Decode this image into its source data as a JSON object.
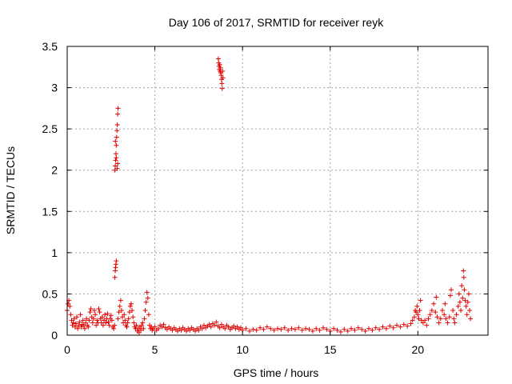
{
  "chart_data": {
    "type": "scatter",
    "title": "Day 106 of 2017, SRMTID for receiver reyk",
    "xlabel": "GPS time / hours",
    "ylabel": "SRMTID / TECUs",
    "xlim": [
      0,
      24
    ],
    "ylim": [
      0,
      3.5
    ],
    "grid": true,
    "marker": "+",
    "color": "#e00000",
    "x_ticks": [
      {
        "value": 0,
        "label": "0"
      },
      {
        "value": 5,
        "label": "5"
      },
      {
        "value": 10,
        "label": "10"
      },
      {
        "value": 15,
        "label": "15"
      },
      {
        "value": 20,
        "label": "20"
      }
    ],
    "y_ticks": [
      {
        "value": 0,
        "label": "0"
      },
      {
        "value": 0.5,
        "label": "0.5"
      },
      {
        "value": 1,
        "label": "1"
      },
      {
        "value": 1.5,
        "label": "1.5"
      },
      {
        "value": 2,
        "label": "2"
      },
      {
        "value": 2.5,
        "label": "2.5"
      },
      {
        "value": 3,
        "label": "3"
      },
      {
        "value": 3.5,
        "label": "3.5"
      }
    ],
    "series": [
      {
        "name": "reyk",
        "points": [
          [
            0.0,
            0.3
          ],
          [
            0.05,
            0.38
          ],
          [
            0.1,
            0.42
          ],
          [
            0.15,
            0.35
          ],
          [
            0.2,
            0.25
          ],
          [
            0.25,
            0.18
          ],
          [
            0.3,
            0.12
          ],
          [
            0.35,
            0.15
          ],
          [
            0.4,
            0.2
          ],
          [
            0.45,
            0.1
          ],
          [
            0.5,
            0.14
          ],
          [
            0.55,
            0.22
          ],
          [
            0.6,
            0.08
          ],
          [
            0.65,
            0.12
          ],
          [
            0.7,
            0.16
          ],
          [
            0.75,
            0.25
          ],
          [
            0.8,
            0.1
          ],
          [
            0.85,
            0.13
          ],
          [
            0.9,
            0.18
          ],
          [
            0.95,
            0.12
          ],
          [
            1.0,
            0.08
          ],
          [
            1.05,
            0.15
          ],
          [
            1.1,
            0.2
          ],
          [
            1.15,
            0.12
          ],
          [
            1.2,
            0.1
          ],
          [
            1.25,
            0.18
          ],
          [
            1.3,
            0.28
          ],
          [
            1.35,
            0.32
          ],
          [
            1.4,
            0.22
          ],
          [
            1.45,
            0.15
          ],
          [
            1.5,
            0.2
          ],
          [
            1.55,
            0.3
          ],
          [
            1.6,
            0.25
          ],
          [
            1.65,
            0.12
          ],
          [
            1.7,
            0.18
          ],
          [
            1.75,
            0.15
          ],
          [
            1.8,
            0.32
          ],
          [
            1.85,
            0.28
          ],
          [
            1.9,
            0.2
          ],
          [
            1.95,
            0.15
          ],
          [
            2.0,
            0.22
          ],
          [
            2.05,
            0.12
          ],
          [
            2.1,
            0.18
          ],
          [
            2.15,
            0.25
          ],
          [
            2.2,
            0.15
          ],
          [
            2.25,
            0.2
          ],
          [
            2.3,
            0.26
          ],
          [
            2.35,
            0.16
          ],
          [
            2.4,
            0.12
          ],
          [
            2.45,
            0.2
          ],
          [
            2.5,
            0.24
          ],
          [
            2.55,
            0.18
          ],
          [
            2.6,
            0.1
          ],
          [
            2.65,
            0.08
          ],
          [
            2.7,
            0.12
          ],
          [
            2.72,
            0.7
          ],
          [
            2.74,
            0.78
          ],
          [
            2.76,
            0.82
          ],
          [
            2.78,
            0.86
          ],
          [
            2.8,
            0.9
          ],
          [
            2.72,
            2.0
          ],
          [
            2.74,
            2.05
          ],
          [
            2.76,
            2.12
          ],
          [
            2.78,
            2.2
          ],
          [
            2.8,
            2.3
          ],
          [
            2.82,
            2.4
          ],
          [
            2.84,
            2.48
          ],
          [
            2.86,
            2.55
          ],
          [
            2.88,
            2.68
          ],
          [
            2.9,
            2.75
          ],
          [
            2.75,
            2.35
          ],
          [
            2.8,
            2.15
          ],
          [
            2.85,
            2.02
          ],
          [
            2.88,
            2.08
          ],
          [
            2.9,
            0.2
          ],
          [
            2.95,
            0.28
          ],
          [
            3.0,
            0.35
          ],
          [
            3.05,
            0.42
          ],
          [
            3.1,
            0.3
          ],
          [
            3.15,
            0.22
          ],
          [
            3.2,
            0.15
          ],
          [
            3.25,
            0.25
          ],
          [
            3.3,
            0.18
          ],
          [
            3.35,
            0.12
          ],
          [
            3.4,
            0.1
          ],
          [
            3.45,
            0.15
          ],
          [
            3.5,
            0.2
          ],
          [
            3.55,
            0.28
          ],
          [
            3.6,
            0.35
          ],
          [
            3.65,
            0.38
          ],
          [
            3.7,
            0.3
          ],
          [
            3.75,
            0.22
          ],
          [
            3.8,
            0.15
          ],
          [
            3.85,
            0.1
          ],
          [
            3.9,
            0.08
          ],
          [
            3.95,
            0.12
          ],
          [
            4.0,
            0.05
          ],
          [
            4.05,
            0.08
          ],
          [
            4.1,
            0.03
          ],
          [
            4.15,
            0.1
          ],
          [
            4.2,
            0.06
          ],
          [
            4.25,
            0.12
          ],
          [
            4.3,
            0.15
          ],
          [
            4.35,
            0.08
          ],
          [
            4.4,
            0.2
          ],
          [
            4.45,
            0.3
          ],
          [
            4.5,
            0.4
          ],
          [
            4.55,
            0.52
          ],
          [
            4.6,
            0.45
          ],
          [
            4.65,
            0.25
          ],
          [
            4.7,
            0.12
          ],
          [
            4.75,
            0.08
          ],
          [
            4.8,
            0.1
          ],
          [
            4.85,
            0.06
          ],
          [
            4.9,
            0.08
          ],
          [
            5.0,
            0.1
          ],
          [
            5.1,
            0.06
          ],
          [
            5.2,
            0.08
          ],
          [
            5.3,
            0.12
          ],
          [
            5.4,
            0.1
          ],
          [
            5.5,
            0.13
          ],
          [
            5.6,
            0.09
          ],
          [
            5.7,
            0.07
          ],
          [
            5.8,
            0.1
          ],
          [
            5.9,
            0.08
          ],
          [
            6.0,
            0.06
          ],
          [
            6.1,
            0.09
          ],
          [
            6.2,
            0.07
          ],
          [
            6.3,
            0.05
          ],
          [
            6.4,
            0.08
          ],
          [
            6.5,
            0.06
          ],
          [
            6.6,
            0.09
          ],
          [
            6.7,
            0.07
          ],
          [
            6.8,
            0.05
          ],
          [
            6.9,
            0.08
          ],
          [
            7.0,
            0.06
          ],
          [
            7.1,
            0.09
          ],
          [
            7.2,
            0.07
          ],
          [
            7.3,
            0.05
          ],
          [
            7.4,
            0.08
          ],
          [
            7.5,
            0.06
          ],
          [
            7.6,
            0.1
          ],
          [
            7.7,
            0.08
          ],
          [
            7.8,
            0.12
          ],
          [
            7.9,
            0.09
          ],
          [
            8.0,
            0.11
          ],
          [
            8.1,
            0.13
          ],
          [
            8.2,
            0.1
          ],
          [
            8.3,
            0.14
          ],
          [
            8.4,
            0.12
          ],
          [
            8.5,
            0.16
          ],
          [
            8.6,
            0.11
          ],
          [
            8.7,
            0.09
          ],
          [
            8.8,
            0.13
          ],
          [
            8.62,
            3.35
          ],
          [
            8.64,
            3.3
          ],
          [
            8.66,
            3.26
          ],
          [
            8.68,
            3.22
          ],
          [
            8.7,
            3.28
          ],
          [
            8.72,
            3.2
          ],
          [
            8.74,
            3.24
          ],
          [
            8.76,
            3.18
          ],
          [
            8.78,
            3.15
          ],
          [
            8.8,
            3.1
          ],
          [
            8.82,
            3.05
          ],
          [
            8.84,
            2.99
          ],
          [
            8.86,
            3.2
          ],
          [
            8.88,
            3.12
          ],
          [
            8.9,
            0.1
          ],
          [
            9.0,
            0.08
          ],
          [
            9.1,
            0.12
          ],
          [
            9.2,
            0.1
          ],
          [
            9.3,
            0.07
          ],
          [
            9.4,
            0.09
          ],
          [
            9.5,
            0.11
          ],
          [
            9.6,
            0.08
          ],
          [
            9.7,
            0.1
          ],
          [
            9.8,
            0.07
          ],
          [
            9.9,
            0.09
          ],
          [
            10.0,
            0.06
          ],
          [
            10.2,
            0.08
          ],
          [
            10.4,
            0.05
          ],
          [
            10.6,
            0.07
          ],
          [
            10.8,
            0.06
          ],
          [
            11.0,
            0.09
          ],
          [
            11.2,
            0.07
          ],
          [
            11.4,
            0.1
          ],
          [
            11.6,
            0.08
          ],
          [
            11.8,
            0.06
          ],
          [
            12.0,
            0.08
          ],
          [
            12.2,
            0.07
          ],
          [
            12.4,
            0.09
          ],
          [
            12.6,
            0.06
          ],
          [
            12.8,
            0.08
          ],
          [
            13.0,
            0.07
          ],
          [
            13.2,
            0.09
          ],
          [
            13.4,
            0.06
          ],
          [
            13.6,
            0.08
          ],
          [
            13.8,
            0.07
          ],
          [
            14.0,
            0.05
          ],
          [
            14.2,
            0.08
          ],
          [
            14.4,
            0.06
          ],
          [
            14.6,
            0.09
          ],
          [
            14.8,
            0.07
          ],
          [
            15.0,
            0.05
          ],
          [
            15.2,
            0.08
          ],
          [
            15.4,
            0.06
          ],
          [
            15.6,
            0.04
          ],
          [
            15.8,
            0.07
          ],
          [
            16.0,
            0.05
          ],
          [
            16.2,
            0.08
          ],
          [
            16.4,
            0.06
          ],
          [
            16.6,
            0.09
          ],
          [
            16.8,
            0.07
          ],
          [
            17.0,
            0.05
          ],
          [
            17.2,
            0.08
          ],
          [
            17.4,
            0.06
          ],
          [
            17.6,
            0.09
          ],
          [
            17.8,
            0.07
          ],
          [
            18.0,
            0.1
          ],
          [
            18.2,
            0.08
          ],
          [
            18.4,
            0.11
          ],
          [
            18.6,
            0.09
          ],
          [
            18.8,
            0.12
          ],
          [
            19.0,
            0.1
          ],
          [
            19.2,
            0.13
          ],
          [
            19.4,
            0.11
          ],
          [
            19.6,
            0.14
          ],
          [
            19.7,
            0.18
          ],
          [
            19.8,
            0.22
          ],
          [
            19.85,
            0.3
          ],
          [
            19.9,
            0.28
          ],
          [
            19.95,
            0.35
          ],
          [
            20.0,
            0.25
          ],
          [
            20.05,
            0.2
          ],
          [
            20.1,
            0.3
          ],
          [
            20.15,
            0.42
          ],
          [
            20.2,
            0.18
          ],
          [
            20.3,
            0.15
          ],
          [
            20.4,
            0.18
          ],
          [
            20.5,
            0.12
          ],
          [
            20.6,
            0.2
          ],
          [
            20.7,
            0.25
          ],
          [
            20.8,
            0.3
          ],
          [
            20.9,
            0.38
          ],
          [
            21.0,
            0.28
          ],
          [
            21.05,
            0.46
          ],
          [
            21.1,
            0.22
          ],
          [
            21.2,
            0.15
          ],
          [
            21.3,
            0.2
          ],
          [
            21.4,
            0.3
          ],
          [
            21.5,
            0.25
          ],
          [
            21.55,
            0.38
          ],
          [
            21.6,
            0.2
          ],
          [
            21.7,
            0.15
          ],
          [
            21.8,
            0.22
          ],
          [
            21.85,
            0.48
          ],
          [
            21.9,
            0.55
          ],
          [
            22.0,
            0.3
          ],
          [
            22.05,
            0.2
          ],
          [
            22.1,
            0.15
          ],
          [
            22.2,
            0.25
          ],
          [
            22.3,
            0.35
          ],
          [
            22.35,
            0.5
          ],
          [
            22.4,
            0.4
          ],
          [
            22.45,
            0.3
          ],
          [
            22.5,
            0.6
          ],
          [
            22.55,
            0.45
          ],
          [
            22.6,
            0.78
          ],
          [
            22.62,
            0.7
          ],
          [
            22.65,
            0.55
          ],
          [
            22.7,
            0.42
          ],
          [
            22.75,
            0.35
          ],
          [
            22.8,
            0.25
          ],
          [
            22.85,
            0.4
          ],
          [
            22.9,
            0.5
          ],
          [
            22.95,
            0.3
          ],
          [
            23.0,
            0.2
          ]
        ]
      }
    ]
  }
}
